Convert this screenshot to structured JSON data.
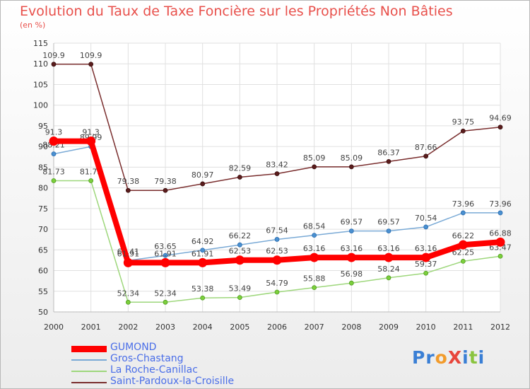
{
  "title": "Evolution du Taux de Taxe Foncière sur les Propriétés Non Bâties",
  "unit_label": "(en %)",
  "logo": {
    "text": "ProXiti",
    "letters": [
      "P",
      "r",
      "o",
      "X",
      "i",
      "t",
      "i"
    ],
    "colors": [
      "#3a7fd5",
      "#3a7fd5",
      "#f29b2b",
      "#e8463c",
      "#3a7fd5",
      "#8ac43f",
      "#3a7fd5"
    ]
  },
  "chart_data": {
    "type": "line",
    "title": "Evolution du Taux de Taxe Foncière sur les Propriétés Non Bâties",
    "ylabel": "(en %)",
    "xlabel": "",
    "x": [
      "2000",
      "2001",
      "2002",
      "2003",
      "2004",
      "2005",
      "2006",
      "2007",
      "2008",
      "2009",
      "2010",
      "2011",
      "2012"
    ],
    "ylim": [
      50,
      115
    ],
    "yticks": [
      50,
      55,
      60,
      65,
      70,
      75,
      80,
      85,
      90,
      95,
      100,
      105,
      110,
      115
    ],
    "grid": true,
    "legend_position": "bottom-left",
    "series": [
      {
        "name": "GUMOND",
        "color": "#ff0000",
        "values": [
          91.3,
          91.3,
          61.91,
          61.91,
          61.91,
          62.53,
          62.53,
          63.16,
          63.16,
          63.16,
          63.16,
          66.22,
          66.88
        ],
        "labels": [
          "91.3",
          "91.3",
          "61.91",
          "61.91",
          "61.91",
          "62.53",
          "62.53",
          "63.16",
          "63.16",
          "63.16",
          "63.16",
          "66.22",
          "66.88"
        ]
      },
      {
        "name": "Gros-Chastang",
        "color": "#7aaad6",
        "values": [
          88.21,
          89.99,
          62.41,
          63.65,
          64.92,
          66.22,
          67.54,
          68.54,
          69.57,
          69.57,
          70.54,
          73.96,
          73.96
        ],
        "labels": [
          "88.21",
          "89.99",
          "62.41",
          "63.65",
          "64.92",
          "66.22",
          "67.54",
          "68.54",
          "69.57",
          "69.57",
          "70.54",
          "73.96",
          "73.96"
        ]
      },
      {
        "name": "La Roche-Canillac",
        "color": "#9ed77c",
        "values": [
          81.73,
          81.73,
          52.34,
          52.34,
          53.38,
          53.49,
          54.79,
          55.88,
          56.98,
          58.24,
          59.37,
          62.25,
          63.47
        ],
        "labels": [
          "81.73",
          "81.73",
          "52.34",
          "52.34",
          "53.38",
          "53.49",
          "54.79",
          "55.88",
          "56.98",
          "58.24",
          "59.37",
          "62.25",
          "63.47"
        ]
      },
      {
        "name": "Saint-Pardoux-la-Croisille",
        "color": "#7a2e2e",
        "values": [
          109.9,
          109.9,
          79.38,
          79.38,
          80.97,
          82.59,
          83.42,
          85.09,
          85.09,
          86.37,
          87.66,
          93.75,
          94.69
        ],
        "labels": [
          "109.9",
          "109.9",
          "79.38",
          "79.38",
          "80.97",
          "82.59",
          "83.42",
          "85.09",
          "85.09",
          "86.37",
          "87.66",
          "93.75",
          "94.69"
        ]
      }
    ]
  }
}
